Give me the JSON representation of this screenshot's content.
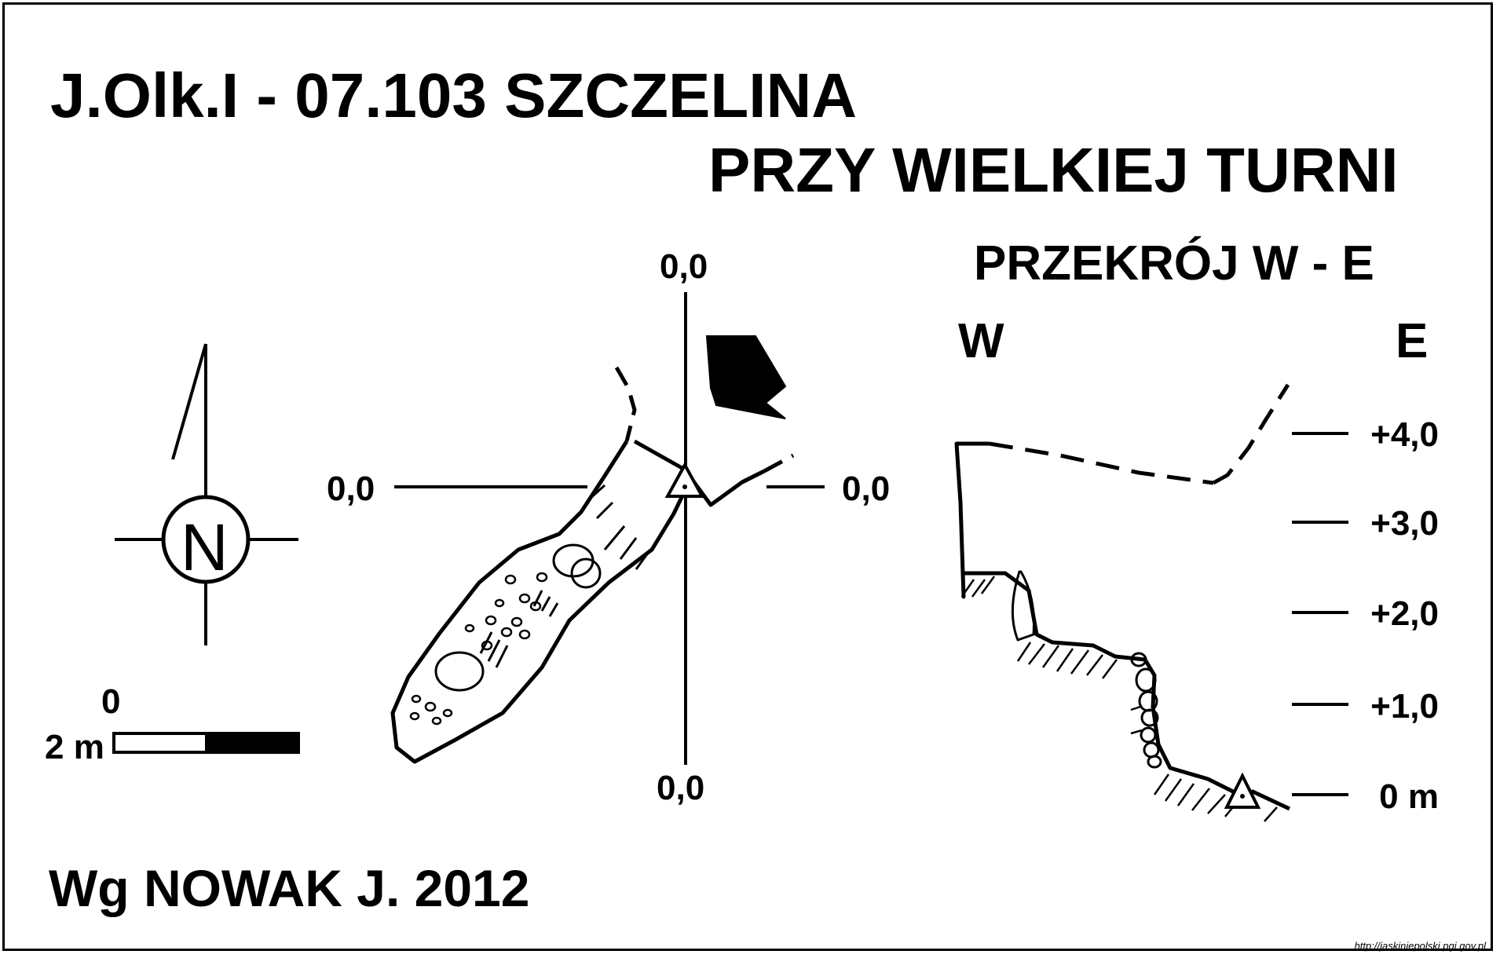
{
  "title": {
    "line1": "J.Olk.I - 07.103  SZCZELINA",
    "line2": "PRZY WIELKIEJ TURNI"
  },
  "section": {
    "title": "PRZEKRÓJ W - E",
    "west": "W",
    "east": "E"
  },
  "plan": {
    "axis_labels": {
      "top": "0,0",
      "left": "0,0",
      "right": "0,0",
      "bottom": "0,0"
    }
  },
  "elevation_scale": [
    "+4,0",
    "+3,0",
    "+2,0",
    "+1,0",
    "0 m"
  ],
  "scale_bar": {
    "start": "0",
    "length": "2 m"
  },
  "north_arrow": {
    "letter": "N",
    "icon": "north-arrow-icon"
  },
  "author": "Wg NOWAK J. 2012",
  "source_url": "http://jaskiniepolski.pgi.gov.pl",
  "colors": {
    "ink": "#000000",
    "paper": "#ffffff"
  }
}
